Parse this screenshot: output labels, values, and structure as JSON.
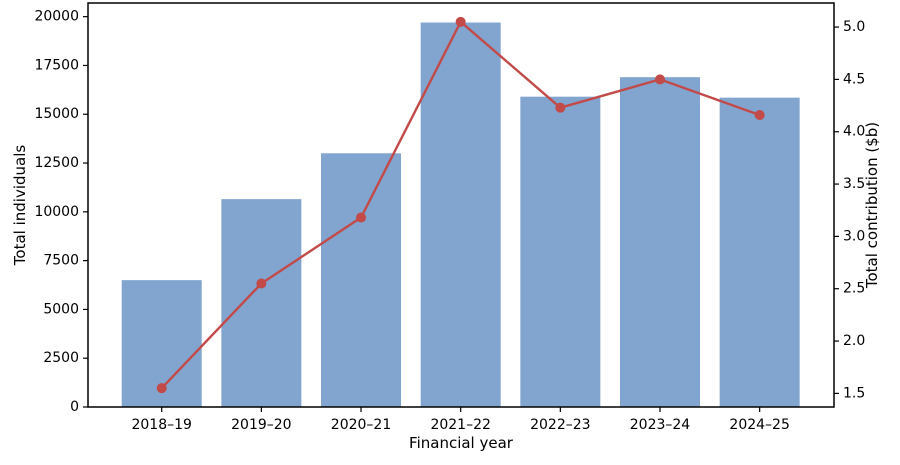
{
  "chart_data": {
    "type": "combo",
    "categories": [
      "2018–19",
      "2019–20",
      "2020–21",
      "2021–22",
      "2022–23",
      "2023–24",
      "2024–25"
    ],
    "series": [
      {
        "name": "Total individuals",
        "type": "bar",
        "yaxis": "left",
        "color": "#81a5cf",
        "values": [
          6500,
          10650,
          13000,
          19700,
          15900,
          16900,
          15850
        ]
      },
      {
        "name": "Total contribution ($b)",
        "type": "line",
        "yaxis": "right",
        "color": "#c24a48",
        "values": [
          1.55,
          2.55,
          3.18,
          5.05,
          4.23,
          4.5,
          4.16
        ]
      }
    ],
    "title": "",
    "xlabel": "Financial year",
    "ylabel_left": "Total individuals",
    "ylabel_right": "Total contribution ($b)",
    "yticks_left": [
      0,
      2500,
      5000,
      7500,
      10000,
      12500,
      15000,
      17500,
      20000
    ],
    "yticks_right": [
      1.5,
      2.0,
      2.5,
      3.0,
      3.5,
      4.0,
      4.5,
      5.0
    ],
    "ylim_left": [
      0,
      20700
    ],
    "ylim_right": [
      1.37,
      5.23
    ],
    "grid": false,
    "legend": "none",
    "axis_color": "#000000",
    "background": "#ffffff"
  }
}
